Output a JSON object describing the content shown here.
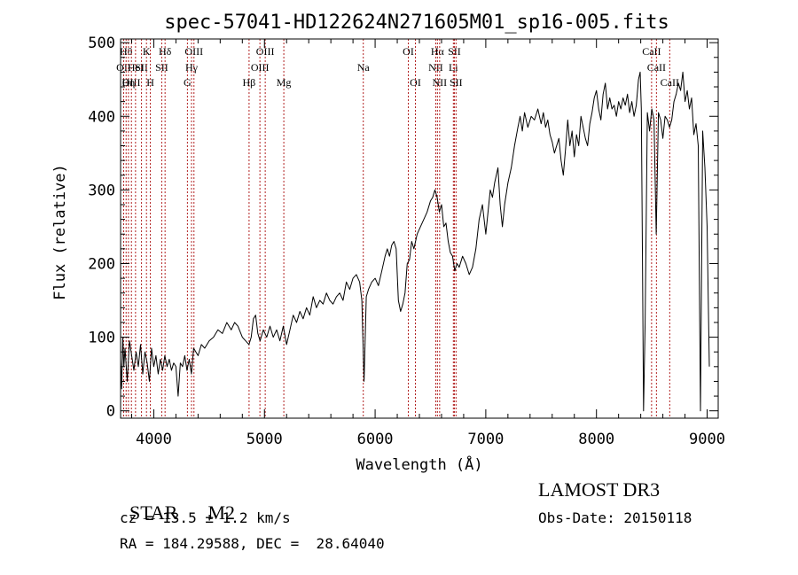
{
  "chart_data": {
    "type": "line",
    "title": "spec-57041-HD122624N271605M01_sp16-005.fits",
    "xlabel": "Wavelength (Å)",
    "ylabel": "Flux (relative)",
    "xlim": [
      3700,
      9100
    ],
    "ylim": [
      -10,
      505
    ],
    "xticks": [
      4000,
      5000,
      6000,
      7000,
      8000,
      9000
    ],
    "yticks": [
      0,
      100,
      200,
      300,
      400,
      500
    ],
    "line_color": "#000000",
    "marker_color": "#b22222",
    "series": [
      {
        "values": [
          [
            3700,
            70
          ],
          [
            3710,
            30
          ],
          [
            3720,
            100
          ],
          [
            3730,
            60
          ],
          [
            3740,
            85
          ],
          [
            3760,
            40
          ],
          [
            3780,
            95
          ],
          [
            3800,
            75
          ],
          [
            3820,
            55
          ],
          [
            3840,
            80
          ],
          [
            3860,
            60
          ],
          [
            3880,
            90
          ],
          [
            3900,
            50
          ],
          [
            3920,
            80
          ],
          [
            3940,
            65
          ],
          [
            3960,
            40
          ],
          [
            3980,
            85
          ],
          [
            4000,
            60
          ],
          [
            4020,
            75
          ],
          [
            4040,
            50
          ],
          [
            4060,
            70
          ],
          [
            4080,
            55
          ],
          [
            4100,
            75
          ],
          [
            4120,
            60
          ],
          [
            4140,
            70
          ],
          [
            4160,
            55
          ],
          [
            4180,
            65
          ],
          [
            4200,
            60
          ],
          [
            4220,
            20
          ],
          [
            4240,
            65
          ],
          [
            4260,
            60
          ],
          [
            4280,
            75
          ],
          [
            4300,
            55
          ],
          [
            4320,
            70
          ],
          [
            4340,
            50
          ],
          [
            4360,
            85
          ],
          [
            4380,
            80
          ],
          [
            4400,
            75
          ],
          [
            4430,
            90
          ],
          [
            4460,
            85
          ],
          [
            4500,
            95
          ],
          [
            4540,
            100
          ],
          [
            4580,
            110
          ],
          [
            4620,
            105
          ],
          [
            4660,
            120
          ],
          [
            4700,
            110
          ],
          [
            4730,
            120
          ],
          [
            4760,
            115
          ],
          [
            4800,
            100
          ],
          [
            4830,
            95
          ],
          [
            4860,
            90
          ],
          [
            4880,
            100
          ],
          [
            4900,
            125
          ],
          [
            4920,
            130
          ],
          [
            4940,
            105
          ],
          [
            4960,
            95
          ],
          [
            4990,
            110
          ],
          [
            5020,
            100
          ],
          [
            5050,
            115
          ],
          [
            5080,
            100
          ],
          [
            5110,
            110
          ],
          [
            5140,
            95
          ],
          [
            5170,
            115
          ],
          [
            5200,
            90
          ],
          [
            5230,
            110
          ],
          [
            5260,
            130
          ],
          [
            5290,
            120
          ],
          [
            5320,
            135
          ],
          [
            5350,
            125
          ],
          [
            5380,
            140
          ],
          [
            5410,
            130
          ],
          [
            5440,
            155
          ],
          [
            5470,
            140
          ],
          [
            5500,
            150
          ],
          [
            5530,
            145
          ],
          [
            5560,
            160
          ],
          [
            5590,
            150
          ],
          [
            5620,
            145
          ],
          [
            5650,
            155
          ],
          [
            5680,
            160
          ],
          [
            5710,
            150
          ],
          [
            5740,
            175
          ],
          [
            5770,
            165
          ],
          [
            5800,
            180
          ],
          [
            5830,
            185
          ],
          [
            5860,
            175
          ],
          [
            5880,
            150
          ],
          [
            5900,
            40
          ],
          [
            5920,
            155
          ],
          [
            5940,
            165
          ],
          [
            5970,
            175
          ],
          [
            6000,
            180
          ],
          [
            6030,
            170
          ],
          [
            6060,
            190
          ],
          [
            6090,
            210
          ],
          [
            6110,
            220
          ],
          [
            6130,
            210
          ],
          [
            6150,
            225
          ],
          [
            6170,
            230
          ],
          [
            6190,
            220
          ],
          [
            6210,
            150
          ],
          [
            6230,
            135
          ],
          [
            6250,
            145
          ],
          [
            6270,
            160
          ],
          [
            6290,
            200
          ],
          [
            6310,
            205
          ],
          [
            6330,
            230
          ],
          [
            6350,
            220
          ],
          [
            6380,
            240
          ],
          [
            6410,
            250
          ],
          [
            6440,
            260
          ],
          [
            6470,
            270
          ],
          [
            6500,
            285
          ],
          [
            6520,
            290
          ],
          [
            6540,
            300
          ],
          [
            6560,
            290
          ],
          [
            6580,
            270
          ],
          [
            6600,
            280
          ],
          [
            6620,
            250
          ],
          [
            6640,
            255
          ],
          [
            6660,
            230
          ],
          [
            6680,
            215
          ],
          [
            6700,
            210
          ],
          [
            6720,
            190
          ],
          [
            6740,
            200
          ],
          [
            6760,
            195
          ],
          [
            6790,
            210
          ],
          [
            6820,
            200
          ],
          [
            6850,
            185
          ],
          [
            6880,
            195
          ],
          [
            6910,
            220
          ],
          [
            6940,
            260
          ],
          [
            6970,
            280
          ],
          [
            7000,
            240
          ],
          [
            7020,
            270
          ],
          [
            7040,
            300
          ],
          [
            7060,
            290
          ],
          [
            7080,
            310
          ],
          [
            7110,
            330
          ],
          [
            7130,
            280
          ],
          [
            7150,
            250
          ],
          [
            7170,
            280
          ],
          [
            7200,
            310
          ],
          [
            7230,
            330
          ],
          [
            7260,
            360
          ],
          [
            7290,
            385
          ],
          [
            7310,
            400
          ],
          [
            7330,
            380
          ],
          [
            7350,
            405
          ],
          [
            7380,
            385
          ],
          [
            7410,
            400
          ],
          [
            7440,
            395
          ],
          [
            7470,
            410
          ],
          [
            7500,
            390
          ],
          [
            7520,
            405
          ],
          [
            7540,
            385
          ],
          [
            7560,
            395
          ],
          [
            7580,
            375
          ],
          [
            7600,
            365
          ],
          [
            7620,
            350
          ],
          [
            7640,
            360
          ],
          [
            7660,
            370
          ],
          [
            7680,
            340
          ],
          [
            7700,
            320
          ],
          [
            7720,
            355
          ],
          [
            7740,
            395
          ],
          [
            7760,
            360
          ],
          [
            7780,
            380
          ],
          [
            7800,
            345
          ],
          [
            7820,
            375
          ],
          [
            7840,
            360
          ],
          [
            7860,
            400
          ],
          [
            7880,
            385
          ],
          [
            7900,
            370
          ],
          [
            7920,
            360
          ],
          [
            7940,
            390
          ],
          [
            7960,
            405
          ],
          [
            7980,
            425
          ],
          [
            8000,
            435
          ],
          [
            8020,
            410
          ],
          [
            8040,
            395
          ],
          [
            8060,
            430
          ],
          [
            8080,
            445
          ],
          [
            8100,
            410
          ],
          [
            8120,
            425
          ],
          [
            8140,
            410
          ],
          [
            8160,
            415
          ],
          [
            8180,
            400
          ],
          [
            8200,
            420
          ],
          [
            8220,
            410
          ],
          [
            8240,
            425
          ],
          [
            8260,
            415
          ],
          [
            8280,
            430
          ],
          [
            8300,
            405
          ],
          [
            8320,
            420
          ],
          [
            8340,
            400
          ],
          [
            8360,
            415
          ],
          [
            8380,
            450
          ],
          [
            8395,
            460
          ],
          [
            8405,
            410
          ],
          [
            8415,
            220
          ],
          [
            8425,
            0
          ],
          [
            8440,
            120
          ],
          [
            8460,
            405
          ],
          [
            8480,
            380
          ],
          [
            8500,
            410
          ],
          [
            8520,
            395
          ],
          [
            8540,
            240
          ],
          [
            8560,
            405
          ],
          [
            8580,
            395
          ],
          [
            8600,
            370
          ],
          [
            8620,
            400
          ],
          [
            8640,
            395
          ],
          [
            8660,
            385
          ],
          [
            8680,
            395
          ],
          [
            8700,
            420
          ],
          [
            8720,
            430
          ],
          [
            8740,
            445
          ],
          [
            8760,
            435
          ],
          [
            8780,
            460
          ],
          [
            8800,
            420
          ],
          [
            8820,
            435
          ],
          [
            8840,
            410
          ],
          [
            8860,
            425
          ],
          [
            8880,
            375
          ],
          [
            8900,
            390
          ],
          [
            8920,
            360
          ],
          [
            8940,
            0
          ],
          [
            8960,
            380
          ],
          [
            8980,
            330
          ],
          [
            9000,
            250
          ],
          [
            9010,
            150
          ],
          [
            9020,
            60
          ]
        ]
      }
    ],
    "markers": [
      {
        "x": 3728,
        "label": "OII",
        "row": 2
      },
      {
        "x": 3750,
        "label": "Hθ",
        "row": 1
      },
      {
        "x": 3771,
        "label": "Hη",
        "row": 3
      },
      {
        "x": 3798,
        "label": "OIII",
        "row": 3
      },
      {
        "x": 3835,
        "label": "HeI",
        "row": 2
      },
      {
        "x": 3889,
        "label": "SII",
        "row": 2
      },
      {
        "x": 3934,
        "label": "K",
        "row": 1
      },
      {
        "x": 3969,
        "label": "H",
        "row": 3
      },
      {
        "x": 4072,
        "label": "SII",
        "row": 2
      },
      {
        "x": 4102,
        "label": "Hδ",
        "row": 1
      },
      {
        "x": 4304,
        "label": "G",
        "row": 3
      },
      {
        "x": 4341,
        "label": "Hγ",
        "row": 2
      },
      {
        "x": 4363,
        "label": "OIII",
        "row": 1
      },
      {
        "x": 4861,
        "label": "Hβ",
        "row": 3
      },
      {
        "x": 4959,
        "label": "OIII",
        "row": 2
      },
      {
        "x": 5007,
        "label": "OIII",
        "row": 1
      },
      {
        "x": 5175,
        "label": "Mg",
        "row": 3
      },
      {
        "x": 5893,
        "label": "Na",
        "row": 2
      },
      {
        "x": 6300,
        "label": "OI",
        "row": 1
      },
      {
        "x": 6364,
        "label": "OI",
        "row": 3
      },
      {
        "x": 6548,
        "label": "NII",
        "row": 2
      },
      {
        "x": 6563,
        "label": "Hα",
        "row": 1
      },
      {
        "x": 6583,
        "label": "NII",
        "row": 3
      },
      {
        "x": 6707,
        "label": "Li",
        "row": 2
      },
      {
        "x": 6716,
        "label": "SII",
        "row": 1
      },
      {
        "x": 6731,
        "label": "SII",
        "row": 3
      },
      {
        "x": 8498,
        "label": "CaII",
        "row": 1
      },
      {
        "x": 8542,
        "label": "CaII",
        "row": 2
      },
      {
        "x": 8662,
        "label": "CaII",
        "row": 3
      }
    ]
  },
  "info": {
    "class_label": "STAR",
    "subclass": "M2",
    "cz": "cz = 13.5 ± 1.2 km/s",
    "coords": "RA = 184.29588, DEC =  28.64040",
    "survey": "LAMOST DR3",
    "obs_date": "Obs-Date: 20150118"
  }
}
